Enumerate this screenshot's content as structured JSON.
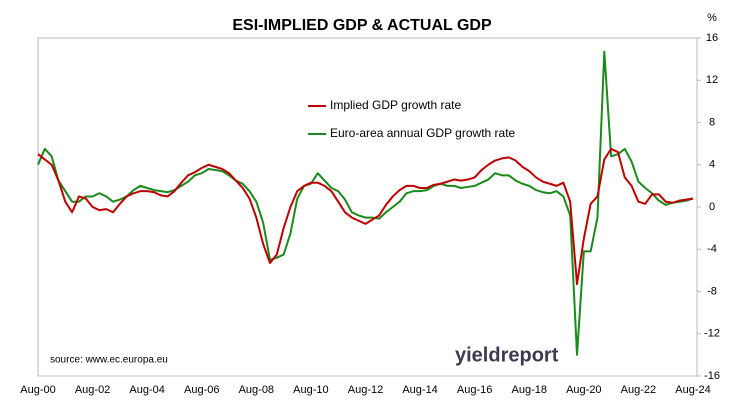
{
  "chart_data": {
    "type": "line",
    "title": "ESI-IMPLIED GDP & ACTUAL GDP",
    "y_unit": "%",
    "source": "source: www.ec.europa.eu",
    "watermark": "yieldreport",
    "categories": [
      "Aug-00",
      null,
      null,
      null,
      null,
      null,
      null,
      null,
      "Aug-02",
      null,
      null,
      null,
      null,
      null,
      null,
      null,
      "Aug-04",
      null,
      null,
      null,
      null,
      null,
      null,
      null,
      "Aug-06",
      null,
      null,
      null,
      null,
      null,
      null,
      null,
      "Aug-08",
      null,
      null,
      null,
      null,
      null,
      null,
      null,
      "Aug-10",
      null,
      null,
      null,
      null,
      null,
      null,
      null,
      "Aug-12",
      null,
      null,
      null,
      null,
      null,
      null,
      null,
      "Aug-14",
      null,
      null,
      null,
      null,
      null,
      null,
      null,
      "Aug-16",
      null,
      null,
      null,
      null,
      null,
      null,
      null,
      "Aug-18",
      null,
      null,
      null,
      null,
      null,
      null,
      null,
      "Aug-20",
      null,
      null,
      null,
      null,
      null,
      null,
      null,
      "Aug-22",
      null,
      null,
      null,
      null,
      null,
      null,
      null,
      "Aug-24"
    ],
    "series": [
      {
        "name": "Implied GDP growth rate",
        "color": "#c00000",
        "values": [
          5.0,
          4.5,
          4.0,
          2.5,
          0.5,
          -0.5,
          1.0,
          0.8,
          0.0,
          -0.3,
          -0.2,
          -0.5,
          0.3,
          1.0,
          1.3,
          1.5,
          1.5,
          1.4,
          1.1,
          1.0,
          1.5,
          2.3,
          3.0,
          3.3,
          3.7,
          4.0,
          3.8,
          3.6,
          3.2,
          2.5,
          1.8,
          0.8,
          -1.0,
          -3.5,
          -5.3,
          -4.5,
          -2.0,
          0.0,
          1.5,
          2.0,
          2.3,
          2.3,
          2.0,
          1.5,
          0.5,
          -0.5,
          -1.0,
          -1.3,
          -1.6,
          -1.2,
          -0.8,
          0.2,
          1.0,
          1.6,
          2.0,
          2.0,
          1.8,
          1.8,
          2.1,
          2.2,
          2.4,
          2.6,
          2.5,
          2.6,
          2.8,
          3.5,
          4.0,
          4.4,
          4.6,
          4.7,
          4.4,
          3.8,
          3.4,
          2.8,
          2.4,
          2.2,
          2.0,
          2.3,
          0.5,
          -7.3,
          -3.0,
          0.3,
          1.0,
          4.5,
          5.5,
          5.2,
          2.8,
          2.0,
          0.5,
          0.3,
          1.2,
          1.2,
          0.5,
          0.4,
          0.6,
          0.7,
          0.8
        ]
      },
      {
        "name": "Euro-area annual GDP growth rate",
        "color": "#1a8a1a",
        "values": [
          4.0,
          5.5,
          4.8,
          2.5,
          1.5,
          0.5,
          0.5,
          1.0,
          1.0,
          1.3,
          1.0,
          0.5,
          0.7,
          1.0,
          1.6,
          2.0,
          1.8,
          1.6,
          1.5,
          1.4,
          1.6,
          2.0,
          2.4,
          3.0,
          3.2,
          3.6,
          3.5,
          3.4,
          3.0,
          2.5,
          2.2,
          1.5,
          0.5,
          -1.5,
          -5.0,
          -4.8,
          -4.5,
          -2.5,
          0.8,
          2.0,
          2.2,
          3.2,
          2.5,
          1.8,
          1.5,
          0.7,
          -0.5,
          -0.8,
          -1.0,
          -1.0,
          -1.1,
          -0.5,
          0.0,
          0.5,
          1.3,
          1.5,
          1.5,
          1.6,
          2.0,
          2.2,
          2.0,
          2.0,
          1.8,
          1.9,
          2.0,
          2.3,
          2.6,
          3.2,
          3.0,
          3.0,
          2.5,
          2.2,
          2.0,
          1.6,
          1.4,
          1.3,
          1.5,
          1.0,
          -0.8,
          -14.0,
          -4.2,
          -4.2,
          -1.0,
          14.7,
          4.8,
          5.0,
          5.5,
          4.3,
          2.4,
          1.8,
          1.3,
          0.6,
          0.2,
          0.4,
          0.5,
          0.6,
          0.8
        ]
      }
    ],
    "ylim": [
      -16,
      16
    ],
    "yticks": [
      -16,
      -12,
      -8,
      -4,
      0,
      4,
      8,
      12,
      16
    ],
    "grid": false
  }
}
